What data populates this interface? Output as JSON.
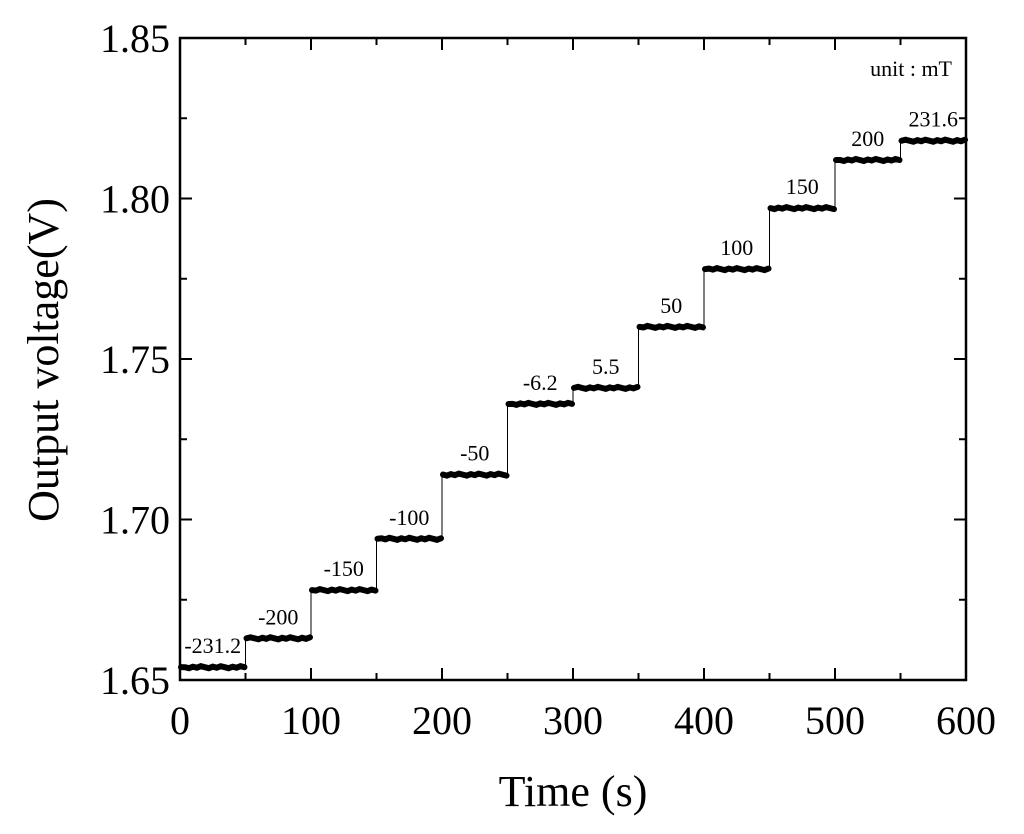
{
  "chart_data": {
    "type": "line",
    "xlabel": "Time (s)",
    "ylabel": "Output voltage(V)",
    "annotation": "unit : mT",
    "xlim": [
      0,
      600
    ],
    "ylim": [
      1.65,
      1.85
    ],
    "x_ticks": [
      0,
      100,
      200,
      300,
      400,
      500,
      600
    ],
    "y_ticks": [
      1.65,
      1.7,
      1.75,
      1.8,
      1.85
    ],
    "grid": false,
    "series": [
      {
        "steps": [
          {
            "label": "-231.2",
            "t_start": 0,
            "t_end": 50,
            "voltage": 1.654
          },
          {
            "label": "-200",
            "t_start": 50,
            "t_end": 100,
            "voltage": 1.663
          },
          {
            "label": "-150",
            "t_start": 100,
            "t_end": 150,
            "voltage": 1.678
          },
          {
            "label": "-100",
            "t_start": 150,
            "t_end": 200,
            "voltage": 1.694
          },
          {
            "label": "-50",
            "t_start": 200,
            "t_end": 250,
            "voltage": 1.714
          },
          {
            "label": "-6.2",
            "t_start": 250,
            "t_end": 300,
            "voltage": 1.736
          },
          {
            "label": "5.5",
            "t_start": 300,
            "t_end": 350,
            "voltage": 1.741
          },
          {
            "label": "50",
            "t_start": 350,
            "t_end": 400,
            "voltage": 1.76
          },
          {
            "label": "100",
            "t_start": 400,
            "t_end": 450,
            "voltage": 1.778
          },
          {
            "label": "150",
            "t_start": 450,
            "t_end": 500,
            "voltage": 1.797
          },
          {
            "label": "200",
            "t_start": 500,
            "t_end": 550,
            "voltage": 1.812
          },
          {
            "label": "231.6",
            "t_start": 550,
            "t_end": 600,
            "voltage": 1.818
          }
        ]
      }
    ]
  }
}
